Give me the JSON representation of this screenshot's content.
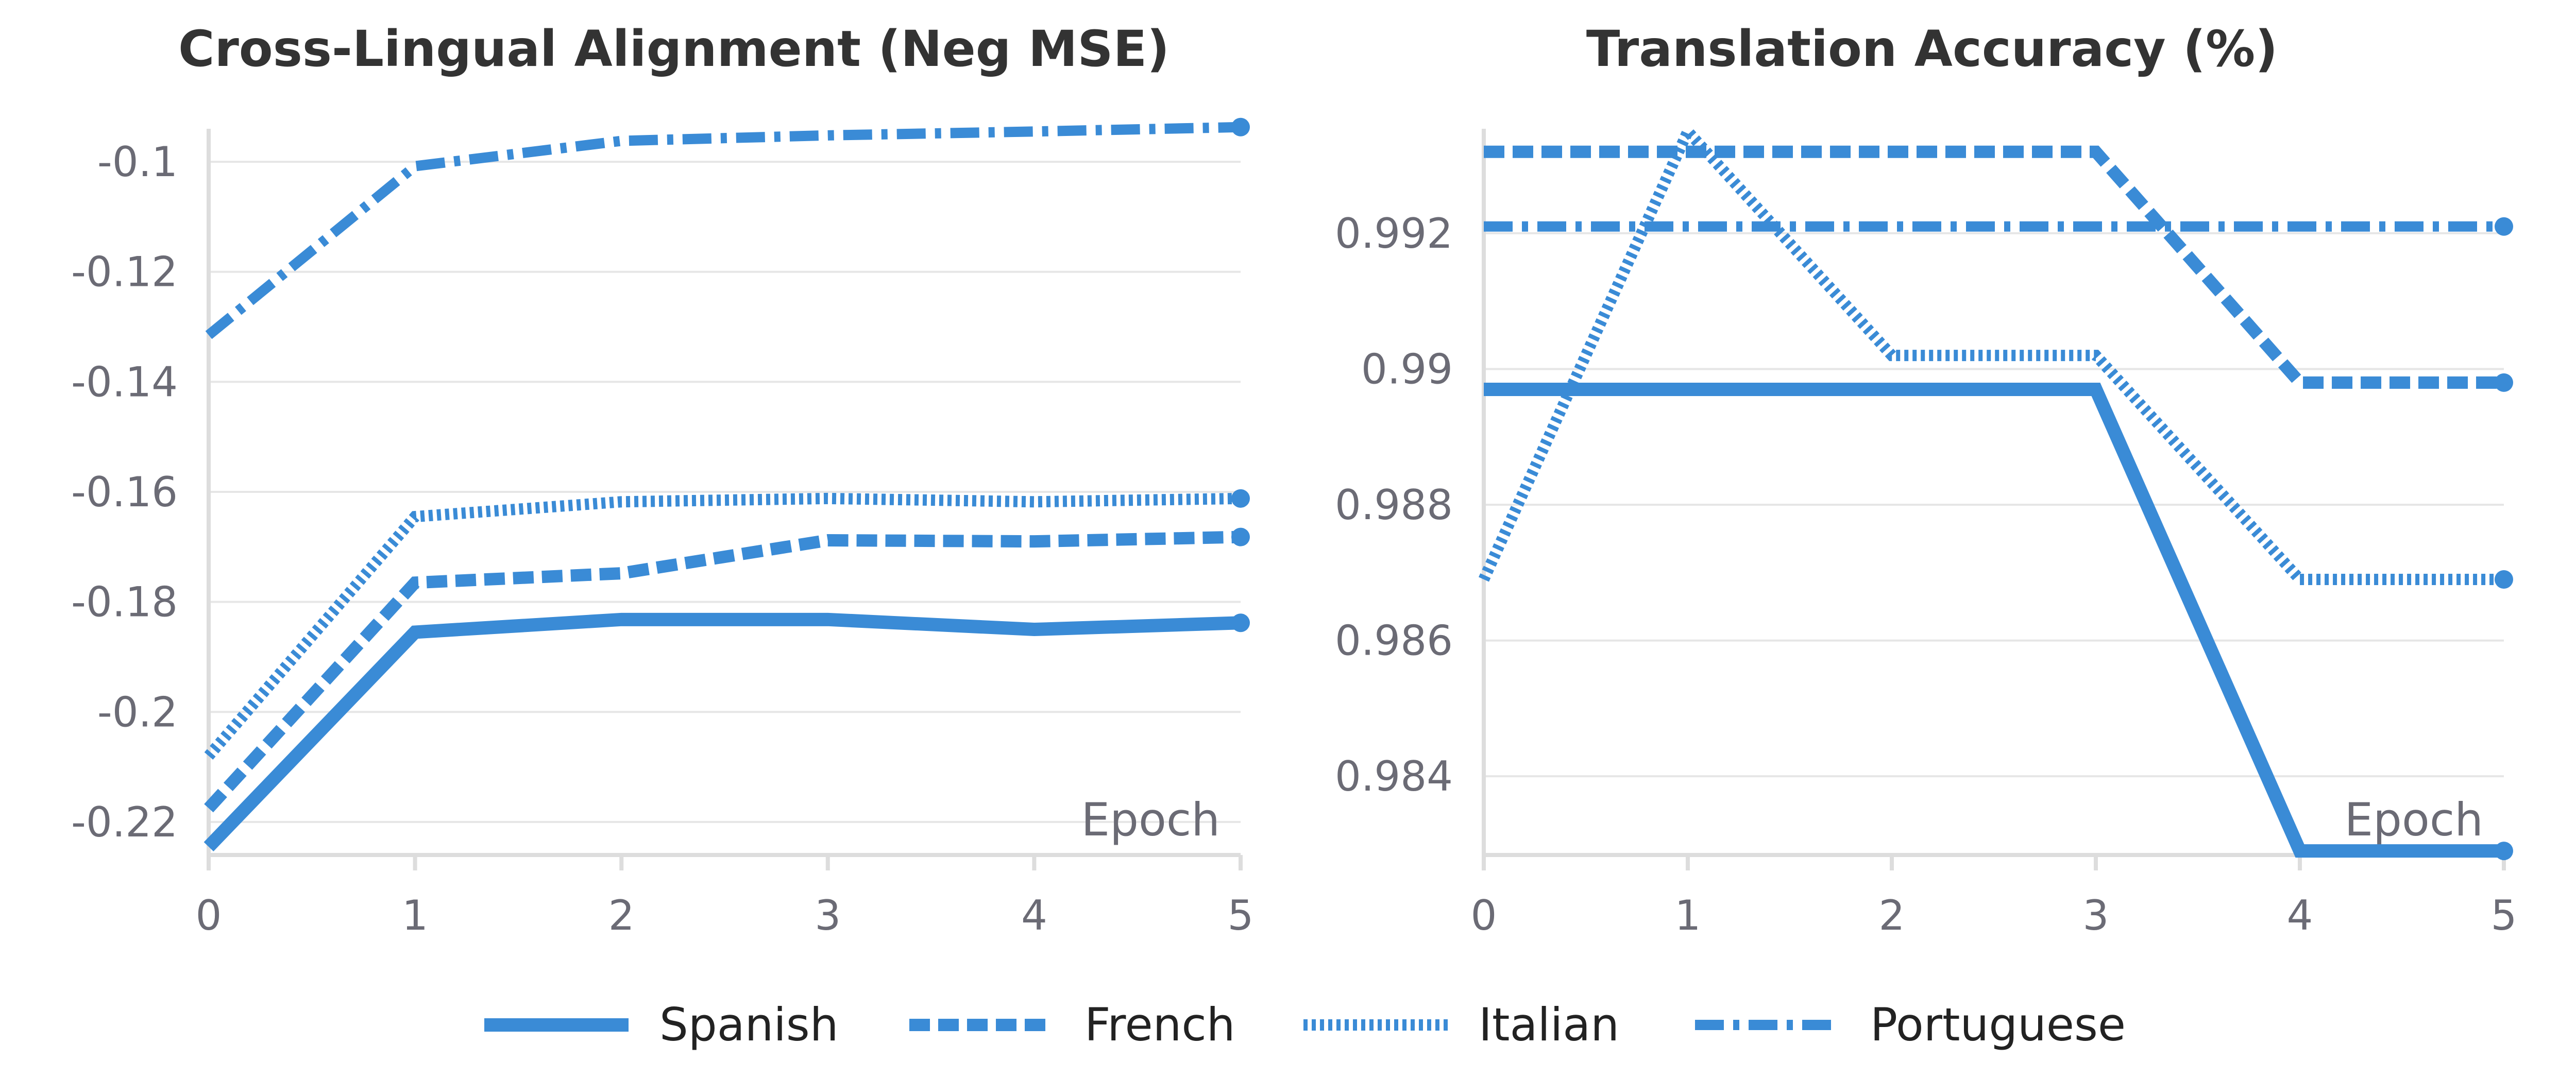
{
  "colors": {
    "series": "#3a8bd6",
    "grid": "#e6e6e6",
    "axis": "#dddddd",
    "tick_text": "#6b6b75",
    "title_text": "#333333"
  },
  "legend": {
    "placement": "bottom-center",
    "items": [
      {
        "label": "Spanish",
        "style": "solid"
      },
      {
        "label": "French",
        "style": "dashed"
      },
      {
        "label": "Italian",
        "style": "dotted"
      },
      {
        "label": "Portuguese",
        "style": "dashdot"
      }
    ]
  },
  "chart_data": [
    {
      "type": "line",
      "title": "Cross-Lingual Alignment (Neg MSE)",
      "xlabel": "Epoch",
      "ylabel": "",
      "x": [
        0,
        1,
        2,
        3,
        4,
        5
      ],
      "xlim": [
        0,
        5
      ],
      "ylim": [
        -0.226,
        -0.094
      ],
      "x_ticks": [
        "0",
        "1",
        "2",
        "3",
        "4",
        "5"
      ],
      "y_ticks": [
        {
          "value": -0.1,
          "label": "-0.1"
        },
        {
          "value": -0.12,
          "label": "-0.12"
        },
        {
          "value": -0.14,
          "label": "-0.14"
        },
        {
          "value": -0.16,
          "label": "-0.16"
        },
        {
          "value": -0.18,
          "label": "-0.18"
        },
        {
          "value": -0.2,
          "label": "-0.2"
        },
        {
          "value": -0.22,
          "label": "-0.22"
        }
      ],
      "grid": true,
      "series": [
        {
          "name": "Spanish",
          "style": "solid",
          "values": [
            -0.2245,
            -0.1855,
            -0.1832,
            -0.1832,
            -0.185,
            -0.1838
          ]
        },
        {
          "name": "French",
          "style": "dashed",
          "values": [
            -0.2175,
            -0.1765,
            -0.1748,
            -0.1688,
            -0.169,
            -0.1682
          ]
        },
        {
          "name": "Italian",
          "style": "dotted",
          "values": [
            -0.208,
            -0.1645,
            -0.1618,
            -0.1612,
            -0.1618,
            -0.1612
          ]
        },
        {
          "name": "Portuguese",
          "style": "dashdot",
          "values": [
            -0.1315,
            -0.1008,
            -0.0962,
            -0.0952,
            -0.0945,
            -0.0937
          ]
        }
      ]
    },
    {
      "type": "line",
      "title": "Translation Accuracy (%)",
      "xlabel": "Epoch",
      "ylabel": "",
      "x": [
        0,
        1,
        2,
        3,
        4,
        5
      ],
      "xlim": [
        0,
        5
      ],
      "ylim": [
        0.98284,
        0.99354
      ],
      "x_ticks": [
        "0",
        "1",
        "2",
        "3",
        "4",
        "5"
      ],
      "y_ticks": [
        {
          "value": 0.984,
          "label": "0.984"
        },
        {
          "value": 0.986,
          "label": "0.986"
        },
        {
          "value": 0.988,
          "label": "0.988"
        },
        {
          "value": 0.99,
          "label": "0.99"
        },
        {
          "value": 0.992,
          "label": "0.992"
        }
      ],
      "grid": true,
      "series": [
        {
          "name": "Spanish",
          "style": "solid",
          "values": [
            0.9897,
            0.9897,
            0.9897,
            0.9897,
            0.9829,
            0.9829
          ]
        },
        {
          "name": "French",
          "style": "dashed",
          "values": [
            0.9932,
            0.9932,
            0.9932,
            0.9932,
            0.9898,
            0.9898
          ]
        },
        {
          "name": "Italian",
          "style": "dotted",
          "values": [
            0.9869,
            0.9935,
            0.9902,
            0.9902,
            0.9869,
            0.9869
          ]
        },
        {
          "name": "Portuguese",
          "style": "dashdot",
          "values": [
            0.9921,
            0.9921,
            0.9921,
            0.9921,
            0.9921,
            0.9921
          ]
        }
      ]
    }
  ]
}
